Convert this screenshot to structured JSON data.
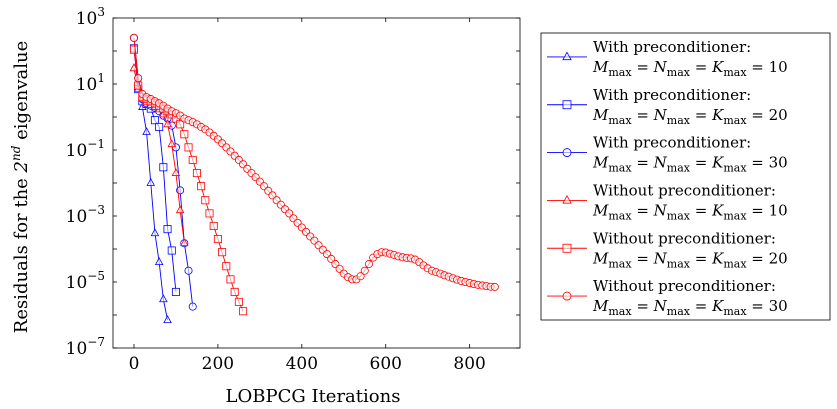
{
  "chart_data": {
    "type": "line",
    "xlabel": "LOBPCG Iterations",
    "ylabel": "Residuals for the 2nd eigenvalue",
    "ylabel_parts": {
      "before": "Residuals for the ",
      "ordinal": "2",
      "sup": "nd",
      "after": " eigenvalue"
    },
    "xlim": [
      -50,
      920
    ],
    "ylim": [
      1e-07,
      1000
    ],
    "yscale": "log",
    "xticks": [
      0,
      200,
      400,
      600,
      800
    ],
    "yticks": [
      {
        "value": 1e-07,
        "base": "10",
        "exp": "−7"
      },
      {
        "value": 1e-05,
        "base": "10",
        "exp": "−5"
      },
      {
        "value": 0.001,
        "base": "10",
        "exp": "−3"
      },
      {
        "value": 0.1,
        "base": "10",
        "exp": "−1"
      },
      {
        "value": 10,
        "base": "10",
        "exp": "1"
      },
      {
        "value": 1000,
        "base": "10",
        "exp": "3"
      }
    ],
    "grid": false,
    "legend_position": "outside-right",
    "series": [
      {
        "name": "With preconditioner: M_max = N_max = K_max = 10",
        "legend_line1": "With preconditioner:",
        "legend_line2": "Mmax = Nmax = Kmax = 10",
        "color": "#0000ff",
        "marker": "triangle",
        "points": [
          [
            0,
            30
          ],
          [
            10,
            8
          ],
          [
            20,
            2
          ],
          [
            30,
            0.35
          ],
          [
            40,
            0.01
          ],
          [
            50,
            0.0003
          ],
          [
            60,
            4e-05
          ],
          [
            70,
            3e-06
          ],
          [
            80,
            7e-07
          ]
        ]
      },
      {
        "name": "With preconditioner: M_max = N_max = K_max = 20",
        "legend_line1": "With preconditioner:",
        "legend_line2": "Mmax = Nmax = Kmax = 20",
        "color": "#0000ff",
        "marker": "square",
        "points": [
          [
            0,
            120
          ],
          [
            10,
            7
          ],
          [
            20,
            3
          ],
          [
            30,
            2.5
          ],
          [
            40,
            1.8
          ],
          [
            50,
            0.8
          ],
          [
            60,
            0.5
          ],
          [
            70,
            0.03
          ],
          [
            80,
            0.0004
          ],
          [
            90,
            9e-05
          ],
          [
            100,
            5e-06
          ]
        ]
      },
      {
        "name": "With preconditioner: M_max = N_max = K_max = 30",
        "legend_line1": "With preconditioner:",
        "legend_line2": "Mmax = Nmax = Kmax = 30",
        "color": "#0000ff",
        "marker": "circle",
        "points": [
          [
            0,
            250
          ],
          [
            10,
            15
          ],
          [
            20,
            3.5
          ],
          [
            30,
            2.6
          ],
          [
            40,
            2.2
          ],
          [
            50,
            1.9
          ],
          [
            60,
            1.5
          ],
          [
            70,
            1.1
          ],
          [
            80,
            0.9
          ],
          [
            90,
            0.55
          ],
          [
            100,
            0.12
          ],
          [
            110,
            0.006
          ],
          [
            120,
            0.00015
          ],
          [
            130,
            2.2e-05
          ],
          [
            140,
            1.8e-06
          ]
        ]
      },
      {
        "name": "Without preconditioner: M_max = N_max = K_max = 10",
        "legend_line1": "Without preconditioner:",
        "legend_line2": "Mmax = Nmax = Kmax = 10",
        "color": "#ff0000",
        "marker": "triangle",
        "points": [
          [
            0,
            30
          ],
          [
            10,
            7
          ],
          [
            20,
            3.5
          ],
          [
            30,
            2.8
          ],
          [
            40,
            2.3
          ],
          [
            50,
            2
          ],
          [
            60,
            1.7
          ],
          [
            70,
            1.2
          ],
          [
            80,
            0.6
          ],
          [
            90,
            0.15
          ],
          [
            100,
            0.02
          ],
          [
            110,
            0.0015
          ],
          [
            120,
            0.00015
          ]
        ]
      },
      {
        "name": "Without preconditioner: M_max = N_max = K_max = 20",
        "legend_line1": "Without preconditioner:",
        "legend_line2": "Mmax = Nmax = Kmax = 20",
        "color": "#ff0000",
        "marker": "square",
        "points": [
          [
            0,
            110
          ],
          [
            10,
            9
          ],
          [
            20,
            4
          ],
          [
            30,
            3.5
          ],
          [
            40,
            3
          ],
          [
            50,
            2.6
          ],
          [
            60,
            2.2
          ],
          [
            70,
            1.8
          ],
          [
            80,
            1.5
          ],
          [
            90,
            1.2
          ],
          [
            100,
            0.9
          ],
          [
            110,
            0.6
          ],
          [
            120,
            0.3
          ],
          [
            130,
            0.12
          ],
          [
            140,
            0.05
          ],
          [
            150,
            0.02
          ],
          [
            160,
            0.008
          ],
          [
            170,
            0.003
          ],
          [
            180,
            0.0012
          ],
          [
            190,
            0.0005
          ],
          [
            200,
            0.0002
          ],
          [
            210,
            8e-05
          ],
          [
            220,
            3e-05
          ],
          [
            230,
            1.2e-05
          ],
          [
            240,
            5e-06
          ],
          [
            250,
            2.5e-06
          ],
          [
            260,
            1.3e-06
          ]
        ]
      },
      {
        "name": "Without preconditioner: M_max = N_max = K_max = 30",
        "legend_line1": "Without preconditioner:",
        "legend_line2": "Mmax = Nmax = Kmax = 30",
        "color": "#ff0000",
        "marker": "circle",
        "points": [
          [
            0,
            250
          ],
          [
            10,
            15
          ],
          [
            20,
            5
          ],
          [
            30,
            4
          ],
          [
            40,
            3.5
          ],
          [
            50,
            3
          ],
          [
            60,
            2.6
          ],
          [
            70,
            2.2
          ],
          [
            80,
            1.8
          ],
          [
            90,
            1.5
          ],
          [
            100,
            1.3
          ],
          [
            110,
            1.1
          ],
          [
            120,
            0.9
          ],
          [
            130,
            0.8
          ],
          [
            140,
            0.7
          ],
          [
            150,
            0.6
          ],
          [
            160,
            0.5
          ],
          [
            170,
            0.42
          ],
          [
            180,
            0.34
          ],
          [
            190,
            0.27
          ],
          [
            200,
            0.21
          ],
          [
            210,
            0.16
          ],
          [
            220,
            0.12
          ],
          [
            230,
            0.09
          ],
          [
            240,
            0.067
          ],
          [
            250,
            0.05
          ],
          [
            260,
            0.037
          ],
          [
            270,
            0.027
          ],
          [
            280,
            0.02
          ],
          [
            290,
            0.015
          ],
          [
            300,
            0.011
          ],
          [
            310,
            0.008
          ],
          [
            320,
            0.0058
          ],
          [
            330,
            0.0042
          ],
          [
            340,
            0.003
          ],
          [
            350,
            0.0022
          ],
          [
            360,
            0.0016
          ],
          [
            370,
            0.0012
          ],
          [
            380,
            0.00085
          ],
          [
            390,
            0.00062
          ],
          [
            400,
            0.00045
          ],
          [
            410,
            0.00033
          ],
          [
            420,
            0.00024
          ],
          [
            430,
            0.00018
          ],
          [
            440,
            0.00013
          ],
          [
            450,
            9.5e-05
          ],
          [
            460,
            7e-05
          ],
          [
            470,
            5e-05
          ],
          [
            480,
            3.5e-05
          ],
          [
            490,
            2.5e-05
          ],
          [
            500,
            1.8e-05
          ],
          [
            510,
            1.4e-05
          ],
          [
            520,
            1.2e-05
          ],
          [
            530,
            1.2e-05
          ],
          [
            540,
            1.5e-05
          ],
          [
            550,
            2.2e-05
          ],
          [
            560,
            3.5e-05
          ],
          [
            570,
            5.5e-05
          ],
          [
            580,
            7e-05
          ],
          [
            590,
            8e-05
          ],
          [
            600,
            7.8e-05
          ],
          [
            610,
            7.2e-05
          ],
          [
            620,
            6.6e-05
          ],
          [
            630,
            6e-05
          ],
          [
            640,
            5.6e-05
          ],
          [
            650,
            5.4e-05
          ],
          [
            660,
            5.2e-05
          ],
          [
            670,
            4.8e-05
          ],
          [
            680,
            4e-05
          ],
          [
            690,
            3.2e-05
          ],
          [
            700,
            2.6e-05
          ],
          [
            710,
            2.2e-05
          ],
          [
            720,
            2e-05
          ],
          [
            730,
            1.8e-05
          ],
          [
            740,
            1.6e-05
          ],
          [
            750,
            1.45e-05
          ],
          [
            760,
            1.3e-05
          ],
          [
            770,
            1.18e-05
          ],
          [
            780,
            1.08e-05
          ],
          [
            790,
            1e-05
          ],
          [
            800,
            9.3e-06
          ],
          [
            810,
            8.7e-06
          ],
          [
            820,
            8.2e-06
          ],
          [
            830,
            7.8e-06
          ],
          [
            840,
            7.5e-06
          ],
          [
            850,
            7.2e-06
          ],
          [
            860,
            7.1e-06
          ]
        ]
      }
    ]
  }
}
